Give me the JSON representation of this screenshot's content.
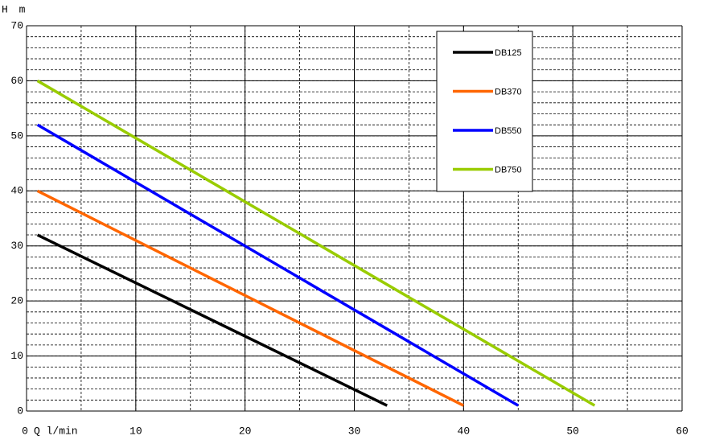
{
  "chart_data": {
    "type": "line",
    "x_label": "Q l/min",
    "y_label": "H m",
    "xlim": [
      0,
      60
    ],
    "xticks": [
      0,
      10,
      20,
      30,
      40,
      50,
      60
    ],
    "ylim": [
      0,
      70
    ],
    "yticks": [
      0,
      10,
      20,
      30,
      40,
      50,
      60,
      70
    ],
    "grid": true,
    "minor_grid_step": {
      "x": 5,
      "y": 2
    },
    "legend": "upper right",
    "series": [
      {
        "name": "DB125",
        "color": "#000000",
        "x": [
          1,
          33
        ],
        "values": [
          32,
          1
        ]
      },
      {
        "name": "DB370",
        "color": "#ff6600",
        "x": [
          1,
          40
        ],
        "values": [
          40,
          1
        ]
      },
      {
        "name": "DB550",
        "color": "#0000ff",
        "x": [
          1,
          45
        ],
        "values": [
          52,
          1
        ]
      },
      {
        "name": "DB750",
        "color": "#99cc00",
        "x": [
          1,
          52
        ],
        "values": [
          60,
          1
        ]
      }
    ]
  }
}
